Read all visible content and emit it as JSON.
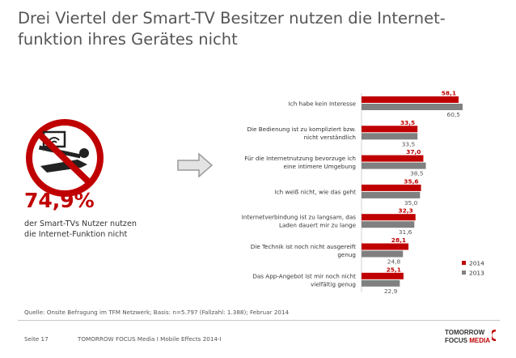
{
  "title": "Drei Viertel der Smart-TV Besitzer nutzen die Internet-\nfunktion ihres Gerätes nicht",
  "title_lines": [
    "Drei Viertel der Smart-TV Besitzer nutzen die Internet-",
    "funktion ihres Gerätes nicht"
  ],
  "stat": {
    "value": "74,9%",
    "line1": "der Smart-TVs Nutzer nutzen",
    "line2": "die Internet-Funktion nicht"
  },
  "source": "Quelle: Onsite Befragung im TFM Netzwerk; Basis: n=5.797 (Fallzahl: 1.388); Februar 2014",
  "footer": {
    "page": "Seite 17",
    "text": "TOMORROW FOCUS Media  I  Mobile Effects 2014-I"
  },
  "logo": {
    "line1": "TOMORROW",
    "line2a": "FOCUS",
    "line2b": "MEDIA"
  },
  "icons": {
    "tv": "tv-no-wifi-icon",
    "arrow": "arrow-right-icon"
  },
  "colors": {
    "series2014": "#c00000",
    "series2013": "#808080",
    "accent": "#c00000"
  },
  "chart_data": {
    "type": "bar",
    "orientation": "horizontal",
    "categories": [
      [
        "Ich habe kein Interesse"
      ],
      [
        "Die Bedienung ist zu kompliziert bzw.",
        "nicht verständlich"
      ],
      [
        "Für die Internetnutzung bevorzuge ich",
        "eine intimere Umgebung"
      ],
      [
        "Ich weiß nicht, wie das geht"
      ],
      [
        "Internetverbindung ist zu langsam, das",
        "Laden dauert mir zu lange"
      ],
      [
        "Die Technik ist noch nicht ausgereift",
        "genug"
      ],
      [
        "Das App-Angebot ist mir noch nicht",
        "vielfältig genug"
      ]
    ],
    "series": [
      {
        "name": "2014",
        "values": [
          58.1,
          33.5,
          37.0,
          35.6,
          32.3,
          28.1,
          25.1
        ],
        "labels": [
          "58,1",
          "33,5",
          "37,0",
          "35,6",
          "32,3",
          "28,1",
          "25,1"
        ]
      },
      {
        "name": "2013",
        "values": [
          60.5,
          33.5,
          38.5,
          35.0,
          31.6,
          24.8,
          22.9
        ],
        "labels": [
          "60,5",
          "33,5",
          "38,5",
          "35,0",
          "31,6",
          "24,8",
          "22,9"
        ]
      }
    ],
    "xlim": [
      0,
      62
    ],
    "legend": "bottom-right"
  }
}
